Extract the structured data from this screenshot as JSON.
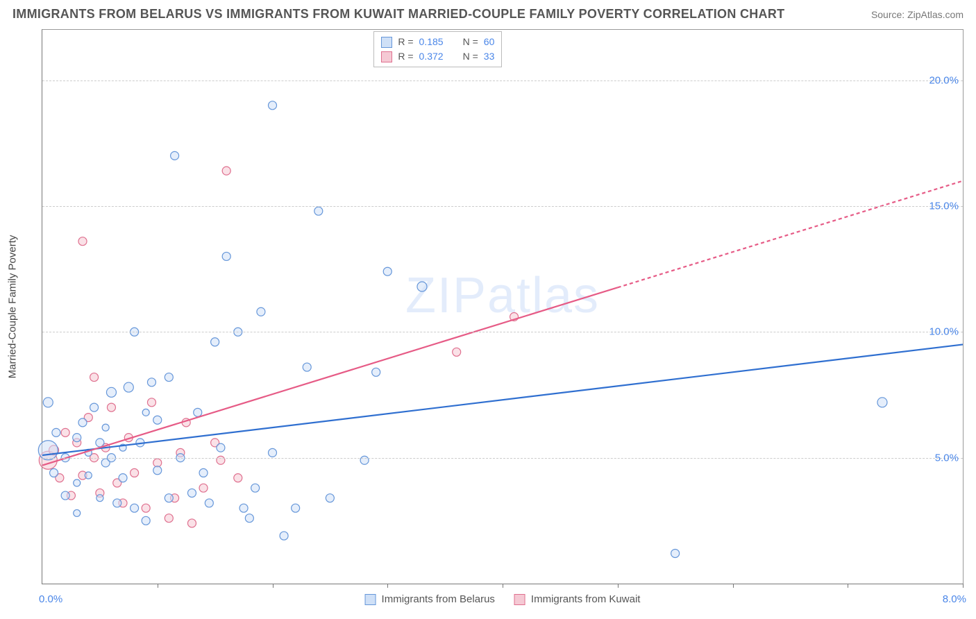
{
  "header": {
    "title": "IMMIGRANTS FROM BELARUS VS IMMIGRANTS FROM KUWAIT MARRIED-COUPLE FAMILY POVERTY CORRELATION CHART",
    "source": "Source: ZipAtlas.com"
  },
  "chart": {
    "type": "scatter",
    "watermark": "ZIPatlas",
    "yaxis_title": "Married-Couple Family Poverty",
    "xlim": [
      0.0,
      8.0
    ],
    "ylim": [
      0.0,
      22.0
    ],
    "ygrid": [
      5.0,
      10.0,
      15.0,
      20.0
    ],
    "ytick_labels": [
      "5.0%",
      "10.0%",
      "15.0%",
      "20.0%"
    ],
    "xtick_positions": [
      1,
      2,
      3,
      4,
      5,
      6,
      7,
      8
    ],
    "xaxis_left_label": "0.0%",
    "xaxis_right_label": "8.0%",
    "background_color": "#ffffff",
    "grid_color": "#cccccc",
    "axis_color": "#777777",
    "tick_label_color": "#4a86e8",
    "series": {
      "belarus": {
        "label": "Immigrants from Belarus",
        "fill": "#cfe0f7",
        "stroke": "#6596d9",
        "line_color": "#2f6fd0",
        "r_value": "0.185",
        "n_value": "60",
        "trend": {
          "x1": 0.0,
          "y1": 5.1,
          "x2": 8.0,
          "y2": 9.5,
          "extent_x": 8.0
        },
        "points": [
          {
            "x": 0.05,
            "y": 7.2,
            "r": 7
          },
          {
            "x": 0.05,
            "y": 5.3,
            "r": 14
          },
          {
            "x": 0.1,
            "y": 4.4,
            "r": 6
          },
          {
            "x": 0.12,
            "y": 6.0,
            "r": 6
          },
          {
            "x": 0.2,
            "y": 5.0,
            "r": 6
          },
          {
            "x": 0.2,
            "y": 3.5,
            "r": 6
          },
          {
            "x": 0.3,
            "y": 5.8,
            "r": 6
          },
          {
            "x": 0.3,
            "y": 4.0,
            "r": 5
          },
          {
            "x": 0.35,
            "y": 6.4,
            "r": 6
          },
          {
            "x": 0.4,
            "y": 5.2,
            "r": 5
          },
          {
            "x": 0.4,
            "y": 4.3,
            "r": 5
          },
          {
            "x": 0.45,
            "y": 7.0,
            "r": 6
          },
          {
            "x": 0.5,
            "y": 5.6,
            "r": 6
          },
          {
            "x": 0.5,
            "y": 3.4,
            "r": 5
          },
          {
            "x": 0.55,
            "y": 6.2,
            "r": 5
          },
          {
            "x": 0.55,
            "y": 4.8,
            "r": 6
          },
          {
            "x": 0.6,
            "y": 7.6,
            "r": 7
          },
          {
            "x": 0.6,
            "y": 5.0,
            "r": 6
          },
          {
            "x": 0.65,
            "y": 3.2,
            "r": 6
          },
          {
            "x": 0.7,
            "y": 5.4,
            "r": 5
          },
          {
            "x": 0.7,
            "y": 4.2,
            "r": 6
          },
          {
            "x": 0.75,
            "y": 7.8,
            "r": 7
          },
          {
            "x": 0.8,
            "y": 10.0,
            "r": 6
          },
          {
            "x": 0.8,
            "y": 3.0,
            "r": 6
          },
          {
            "x": 0.85,
            "y": 5.6,
            "r": 6
          },
          {
            "x": 0.9,
            "y": 2.5,
            "r": 6
          },
          {
            "x": 0.95,
            "y": 8.0,
            "r": 6
          },
          {
            "x": 1.0,
            "y": 6.5,
            "r": 6
          },
          {
            "x": 1.0,
            "y": 4.5,
            "r": 6
          },
          {
            "x": 1.1,
            "y": 8.2,
            "r": 6
          },
          {
            "x": 1.1,
            "y": 3.4,
            "r": 6
          },
          {
            "x": 1.15,
            "y": 17.0,
            "r": 6
          },
          {
            "x": 1.2,
            "y": 5.0,
            "r": 6
          },
          {
            "x": 1.3,
            "y": 3.6,
            "r": 6
          },
          {
            "x": 1.35,
            "y": 6.8,
            "r": 6
          },
          {
            "x": 1.4,
            "y": 4.4,
            "r": 6
          },
          {
            "x": 1.45,
            "y": 3.2,
            "r": 6
          },
          {
            "x": 1.5,
            "y": 9.6,
            "r": 6
          },
          {
            "x": 1.55,
            "y": 5.4,
            "r": 6
          },
          {
            "x": 1.6,
            "y": 13.0,
            "r": 6
          },
          {
            "x": 1.7,
            "y": 10.0,
            "r": 6
          },
          {
            "x": 1.75,
            "y": 3.0,
            "r": 6
          },
          {
            "x": 1.8,
            "y": 2.6,
            "r": 6
          },
          {
            "x": 1.85,
            "y": 3.8,
            "r": 6
          },
          {
            "x": 1.9,
            "y": 10.8,
            "r": 6
          },
          {
            "x": 2.0,
            "y": 19.0,
            "r": 6
          },
          {
            "x": 2.0,
            "y": 5.2,
            "r": 6
          },
          {
            "x": 2.1,
            "y": 1.9,
            "r": 6
          },
          {
            "x": 2.2,
            "y": 3.0,
            "r": 6
          },
          {
            "x": 2.3,
            "y": 8.6,
            "r": 6
          },
          {
            "x": 2.4,
            "y": 14.8,
            "r": 6
          },
          {
            "x": 2.5,
            "y": 3.4,
            "r": 6
          },
          {
            "x": 2.8,
            "y": 4.9,
            "r": 6
          },
          {
            "x": 2.9,
            "y": 8.4,
            "r": 6
          },
          {
            "x": 3.0,
            "y": 12.4,
            "r": 6
          },
          {
            "x": 3.3,
            "y": 11.8,
            "r": 7
          },
          {
            "x": 5.5,
            "y": 1.2,
            "r": 6
          },
          {
            "x": 7.3,
            "y": 7.2,
            "r": 7
          },
          {
            "x": 0.3,
            "y": 2.8,
            "r": 5
          },
          {
            "x": 0.9,
            "y": 6.8,
            "r": 5
          }
        ]
      },
      "kuwait": {
        "label": "Immigrants from Kuwait",
        "fill": "#f5c9d4",
        "stroke": "#df6f8e",
        "line_color": "#e65b86",
        "r_value": "0.372",
        "n_value": "33",
        "trend": {
          "x1": 0.0,
          "y1": 4.7,
          "x2": 8.0,
          "y2": 16.0,
          "extent_x": 5.0
        },
        "points": [
          {
            "x": 0.05,
            "y": 4.9,
            "r": 13
          },
          {
            "x": 0.1,
            "y": 5.3,
            "r": 7
          },
          {
            "x": 0.15,
            "y": 4.2,
            "r": 6
          },
          {
            "x": 0.2,
            "y": 6.0,
            "r": 6
          },
          {
            "x": 0.25,
            "y": 3.5,
            "r": 6
          },
          {
            "x": 0.3,
            "y": 5.6,
            "r": 6
          },
          {
            "x": 0.35,
            "y": 13.6,
            "r": 6
          },
          {
            "x": 0.35,
            "y": 4.3,
            "r": 6
          },
          {
            "x": 0.4,
            "y": 6.6,
            "r": 6
          },
          {
            "x": 0.45,
            "y": 5.0,
            "r": 6
          },
          {
            "x": 0.45,
            "y": 8.2,
            "r": 6
          },
          {
            "x": 0.5,
            "y": 3.6,
            "r": 6
          },
          {
            "x": 0.55,
            "y": 5.4,
            "r": 6
          },
          {
            "x": 0.6,
            "y": 7.0,
            "r": 6
          },
          {
            "x": 0.65,
            "y": 4.0,
            "r": 6
          },
          {
            "x": 0.7,
            "y": 3.2,
            "r": 6
          },
          {
            "x": 0.75,
            "y": 5.8,
            "r": 6
          },
          {
            "x": 0.8,
            "y": 4.4,
            "r": 6
          },
          {
            "x": 0.9,
            "y": 3.0,
            "r": 6
          },
          {
            "x": 0.95,
            "y": 7.2,
            "r": 6
          },
          {
            "x": 1.0,
            "y": 4.8,
            "r": 6
          },
          {
            "x": 1.1,
            "y": 2.6,
            "r": 6
          },
          {
            "x": 1.15,
            "y": 3.4,
            "r": 6
          },
          {
            "x": 1.2,
            "y": 5.2,
            "r": 6
          },
          {
            "x": 1.3,
            "y": 2.4,
            "r": 6
          },
          {
            "x": 1.4,
            "y": 3.8,
            "r": 6
          },
          {
            "x": 1.5,
            "y": 5.6,
            "r": 6
          },
          {
            "x": 1.55,
            "y": 4.9,
            "r": 6
          },
          {
            "x": 1.6,
            "y": 16.4,
            "r": 6
          },
          {
            "x": 1.7,
            "y": 4.2,
            "r": 6
          },
          {
            "x": 3.6,
            "y": 9.2,
            "r": 6
          },
          {
            "x": 4.1,
            "y": 10.6,
            "r": 6
          },
          {
            "x": 1.25,
            "y": 6.4,
            "r": 6
          }
        ]
      }
    },
    "legend_top": [
      {
        "series": "belarus",
        "r_label": "R =",
        "n_label": "N ="
      },
      {
        "series": "kuwait",
        "r_label": "R =",
        "n_label": "N ="
      }
    ]
  }
}
